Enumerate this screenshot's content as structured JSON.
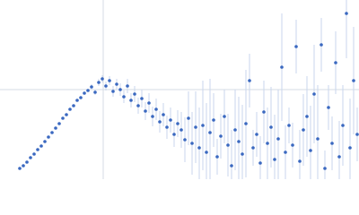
{
  "chart_data": {
    "type": "scatter",
    "xlim": [
      0,
      400
    ],
    "ylim": [
      0,
      200
    ],
    "crosshair": {
      "x": 115,
      "y": 100
    },
    "color": "#3a68c0",
    "error_color": "#c9d6ec",
    "crosshair_color": "#d4dbe6",
    "x": [
      22,
      26,
      30,
      34,
      38,
      42,
      46,
      50,
      54,
      58,
      62,
      66,
      70,
      74,
      78,
      82,
      86,
      90,
      94,
      98,
      102,
      106,
      110,
      114,
      118,
      122,
      126,
      130,
      134,
      138,
      142,
      146,
      150,
      154,
      158,
      162,
      166,
      170,
      174,
      178,
      182,
      186,
      190,
      194,
      198,
      202,
      206,
      210,
      214,
      218,
      222,
      226,
      230,
      234,
      238,
      242,
      246,
      250,
      254,
      258,
      262,
      266,
      270,
      274,
      278,
      282,
      286,
      290,
      294,
      298,
      302,
      306,
      310,
      314,
      318,
      322,
      326,
      330,
      334,
      338,
      342,
      346,
      350,
      354,
      358,
      362,
      366,
      370,
      374,
      378,
      382,
      386,
      390,
      394,
      398
    ],
    "y": [
      12,
      15,
      19,
      24,
      28,
      33,
      37,
      42,
      47,
      52,
      57,
      62,
      68,
      72,
      78,
      82,
      88,
      91,
      96,
      99,
      103,
      97,
      108,
      112,
      104,
      110,
      98,
      106,
      100,
      92,
      104,
      88,
      95,
      82,
      90,
      76,
      85,
      70,
      78,
      64,
      72,
      58,
      66,
      50,
      62,
      55,
      44,
      68,
      40,
      58,
      35,
      60,
      30,
      52,
      66,
      25,
      48,
      70,
      38,
      15,
      55,
      42,
      28,
      62,
      110,
      35,
      50,
      18,
      75,
      40,
      58,
      22,
      45,
      125,
      30,
      60,
      38,
      148,
      20,
      55,
      70,
      32,
      95,
      45,
      150,
      12,
      80,
      40,
      130,
      25,
      60,
      185,
      35,
      110,
      50
    ],
    "errors": [
      1,
      1,
      1,
      1,
      1,
      1,
      1,
      1,
      1,
      1,
      1,
      1,
      1,
      1,
      1,
      1,
      1,
      1,
      1,
      1,
      3,
      3,
      4,
      4,
      5,
      5,
      6,
      6,
      7,
      7,
      8,
      8,
      9,
      9,
      10,
      10,
      11,
      11,
      12,
      12,
      13,
      13,
      14,
      14,
      15,
      20,
      25,
      30,
      35,
      40,
      45,
      50,
      55,
      60,
      30,
      20,
      25,
      30,
      35,
      40,
      45,
      50,
      55,
      60,
      30,
      20,
      25,
      30,
      35,
      40,
      45,
      50,
      55,
      60,
      30,
      20,
      25,
      30,
      35,
      40,
      45,
      50,
      55,
      60,
      30,
      20,
      25,
      30,
      35,
      40,
      45,
      50,
      55,
      60,
      30
    ]
  }
}
